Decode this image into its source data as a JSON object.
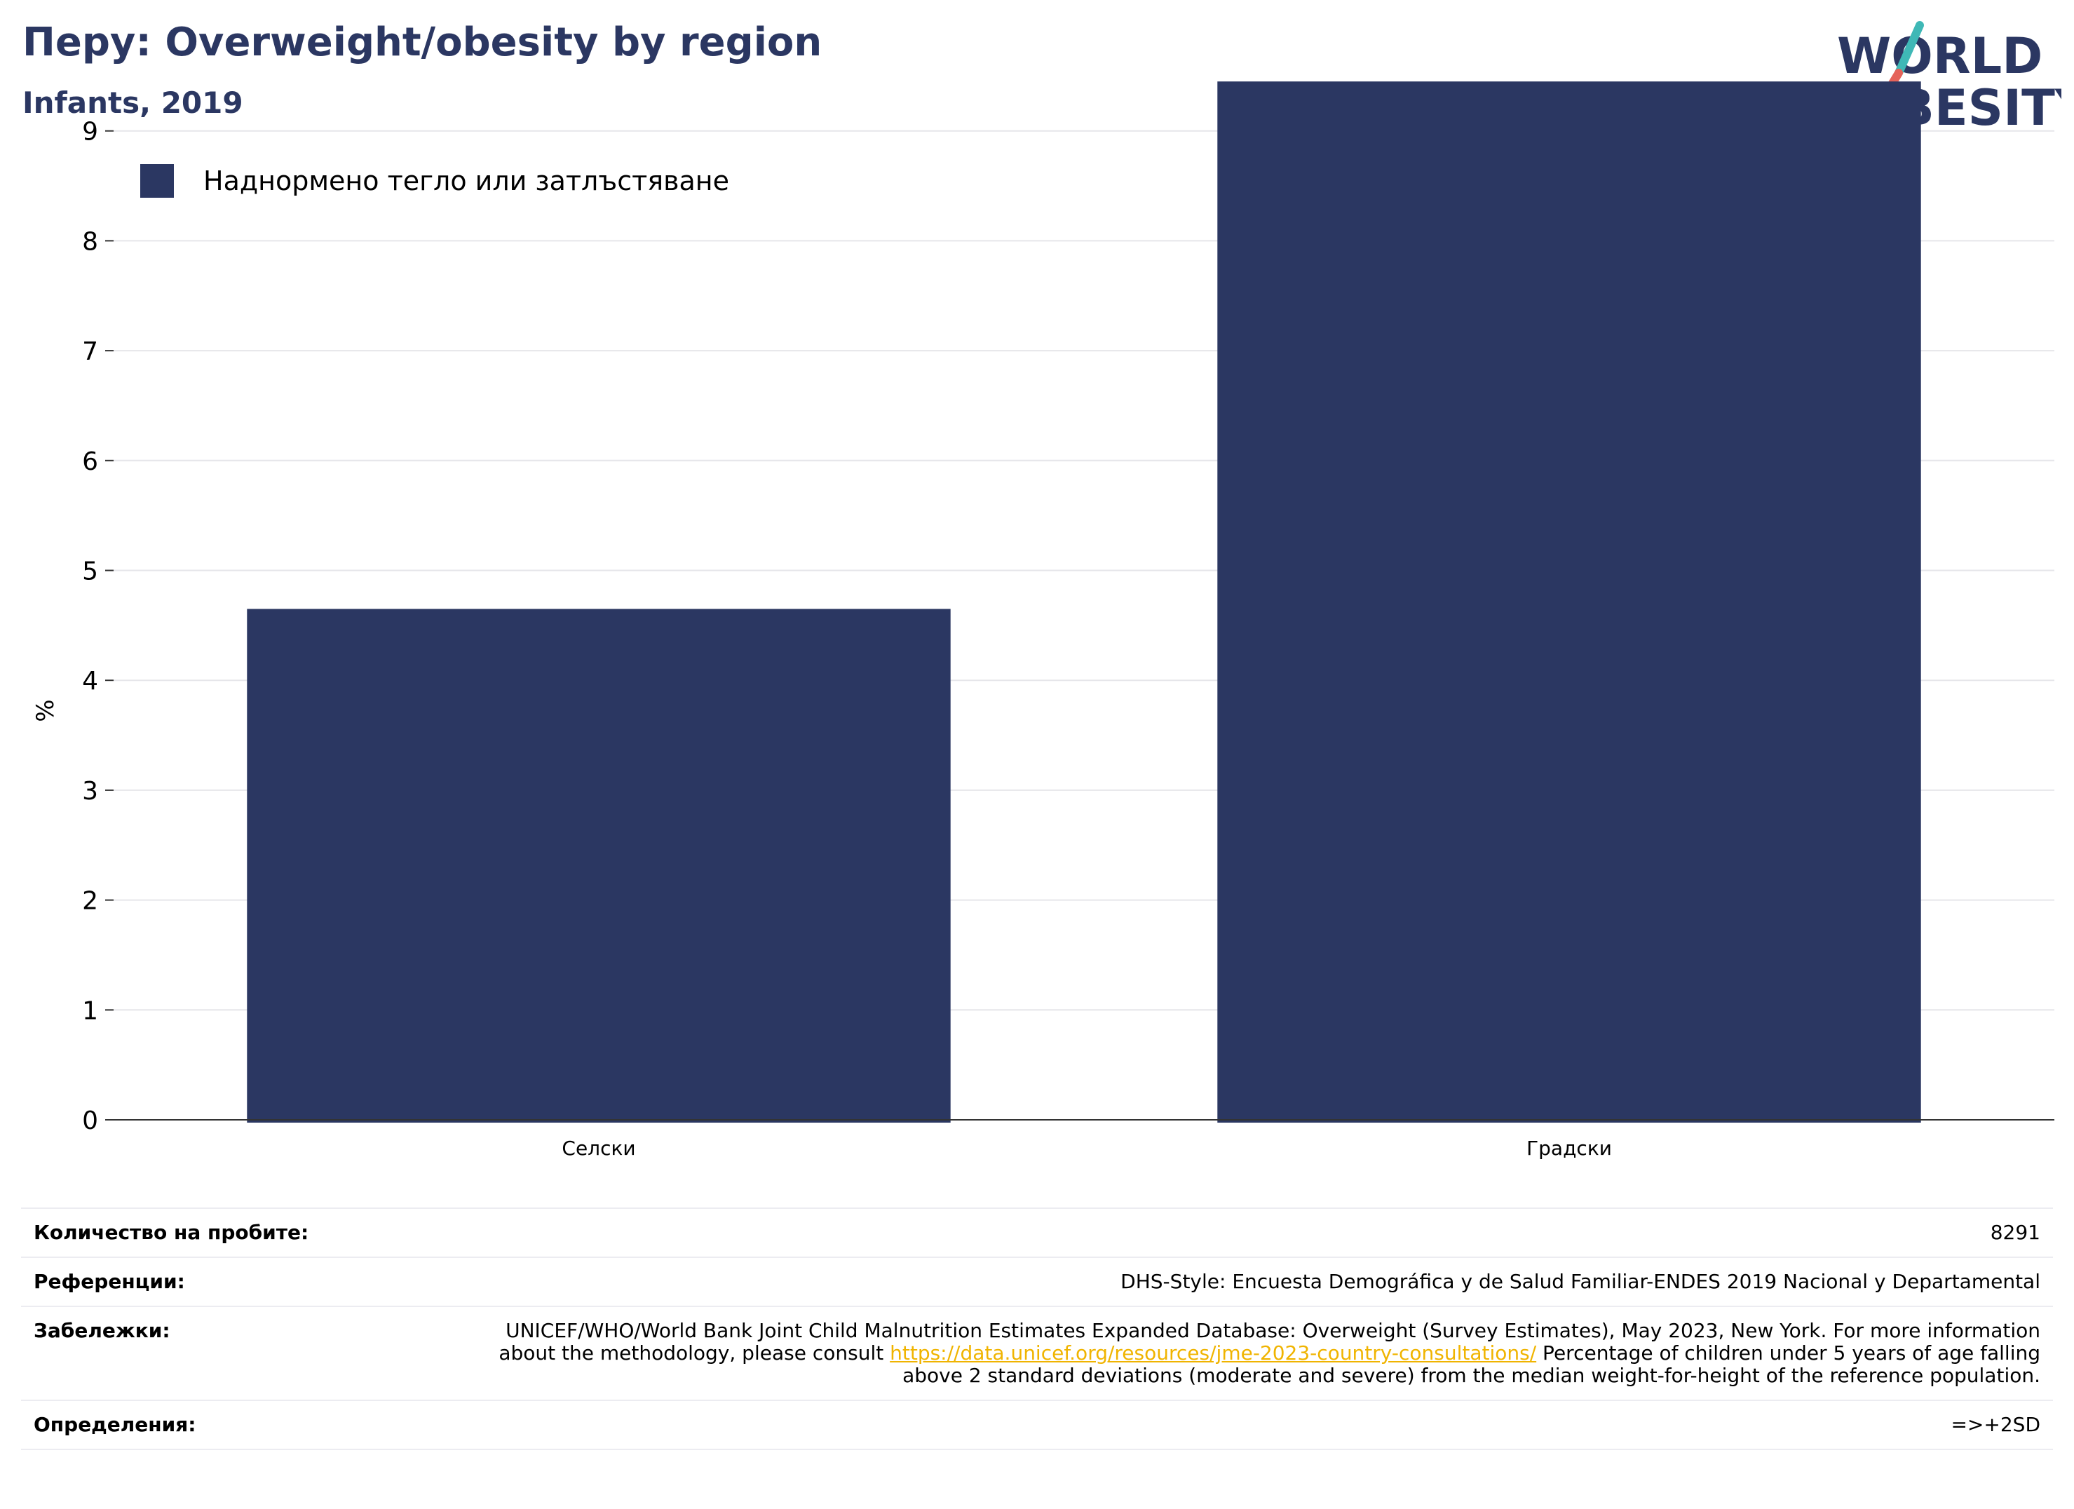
{
  "header": {
    "title": "Перу: Overweight/obesity by region",
    "subtitle": "Infants, 2019"
  },
  "logo": {
    "line1": "WORLD",
    "line2": "OBESITY"
  },
  "colors": {
    "bar": "#2b3762",
    "title": "#2b3762",
    "grid": "#e6e6ea",
    "link": "#f0b400",
    "logo_teal": "#3fb8b6",
    "logo_red": "#e5635a"
  },
  "chart_data": {
    "type": "bar",
    "categories": [
      "Селски",
      "Градски"
    ],
    "series": [
      {
        "name": "Наднормено тегло или затлъстяване",
        "values": [
          4.65,
          9.45
        ]
      }
    ],
    "ylabel": "%",
    "xlabel": "",
    "ylim": [
      0,
      10
    ],
    "yticks": [
      0,
      1,
      2,
      3,
      4,
      5,
      6,
      7,
      8,
      9
    ],
    "grid": true,
    "legend_position": "top-left"
  },
  "meta": {
    "sample_label": "Количество на пробите:",
    "sample_value": "8291",
    "references_label": "Референции:",
    "references_value": "DHS-Style: Encuesta Demográfica y de Salud Familiar-ENDES 2019 Nacional y Departamental",
    "notes_label": "Забележки:",
    "notes_before": "UNICEF/WHO/World Bank Joint Child Malnutrition Estimates Expanded Database: Overweight (Survey Estimates), May 2023, New York. For more information about the methodology, please consult ",
    "notes_link": "https://data.unicef.org/resources/jme-2023-country-consultations/",
    "notes_after": " Percentage of children under 5 years of age falling above 2 standard deviations (moderate and severe) from the median weight-for-height of the reference population.",
    "definitions_label": "Определения:",
    "definitions_value": "=>+2SD"
  }
}
